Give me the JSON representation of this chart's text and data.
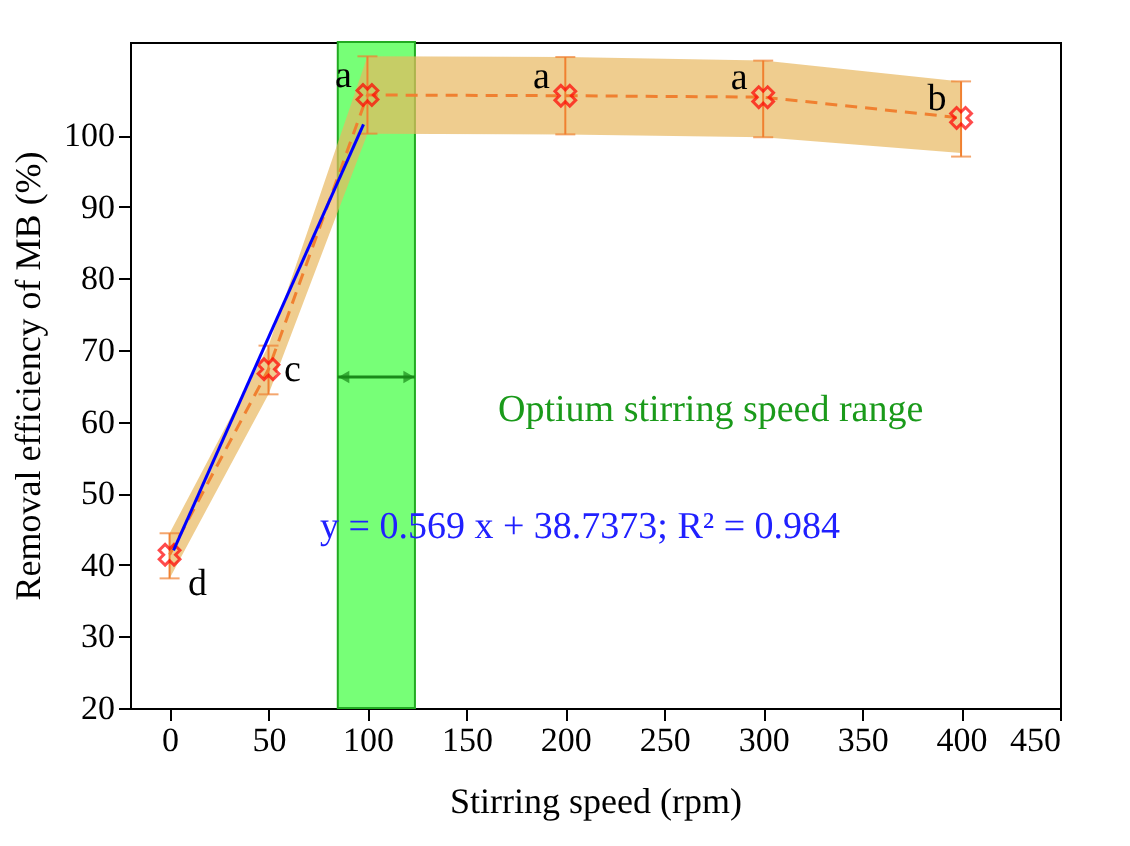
{
  "chart_data": {
    "type": "line",
    "xlabel": "Stirring speed (rpm)",
    "ylabel": "Removal efficiency of MB (%)",
    "xlim": [
      -20,
      450
    ],
    "ylim": [
      20,
      113
    ],
    "xticks": [
      0,
      50,
      100,
      150,
      200,
      250,
      300,
      350,
      400,
      450
    ],
    "yticks": [
      20,
      30,
      40,
      50,
      60,
      70,
      80,
      90,
      100
    ],
    "grid": false,
    "series": [
      {
        "color": "#f08030",
        "line_style": "dashed",
        "marker": "cross",
        "x": [
          0,
          50,
          100,
          200,
          300,
          400
        ],
        "values": [
          41.4,
          67.3,
          105.6,
          105.5,
          105.3,
          102.4
        ],
        "errors": [
          [
            38.1,
            44.4
          ],
          [
            63.8,
            70.6
          ],
          [
            100.2,
            111
          ],
          [
            100.1,
            110.9
          ],
          [
            99.7,
            110.4
          ],
          [
            97,
            107.5
          ]
        ],
        "lower": [
          38.1,
          63.8,
          100.2,
          100.1,
          99.7,
          97.5
        ],
        "upper": [
          44.4,
          70.6,
          111,
          110.9,
          110.4,
          107.5
        ]
      },
      {
        "color": "#0000ff",
        "line_style": "solid",
        "marker": "none",
        "x": [
          2,
          98
        ],
        "values": [
          42,
          101.5
        ]
      }
    ],
    "bands": [
      {
        "axis": "x",
        "from": 85,
        "to": 124,
        "label": "Optium stirring speed range",
        "color": "#77ff77"
      }
    ],
    "annotations": [
      {
        "text": "d",
        "x": 0,
        "y": 41.4
      },
      {
        "text": "c",
        "x": 50,
        "y": 67.3
      },
      {
        "text": "a",
        "x": 100,
        "y": 105.6
      },
      {
        "text": "a",
        "x": 200,
        "y": 105.5
      },
      {
        "text": "a",
        "x": 300,
        "y": 105.3
      },
      {
        "text": "b",
        "x": 400,
        "y": 102.4
      },
      "y = 0.569 x + 38.7373; R² = 0.984"
    ]
  }
}
